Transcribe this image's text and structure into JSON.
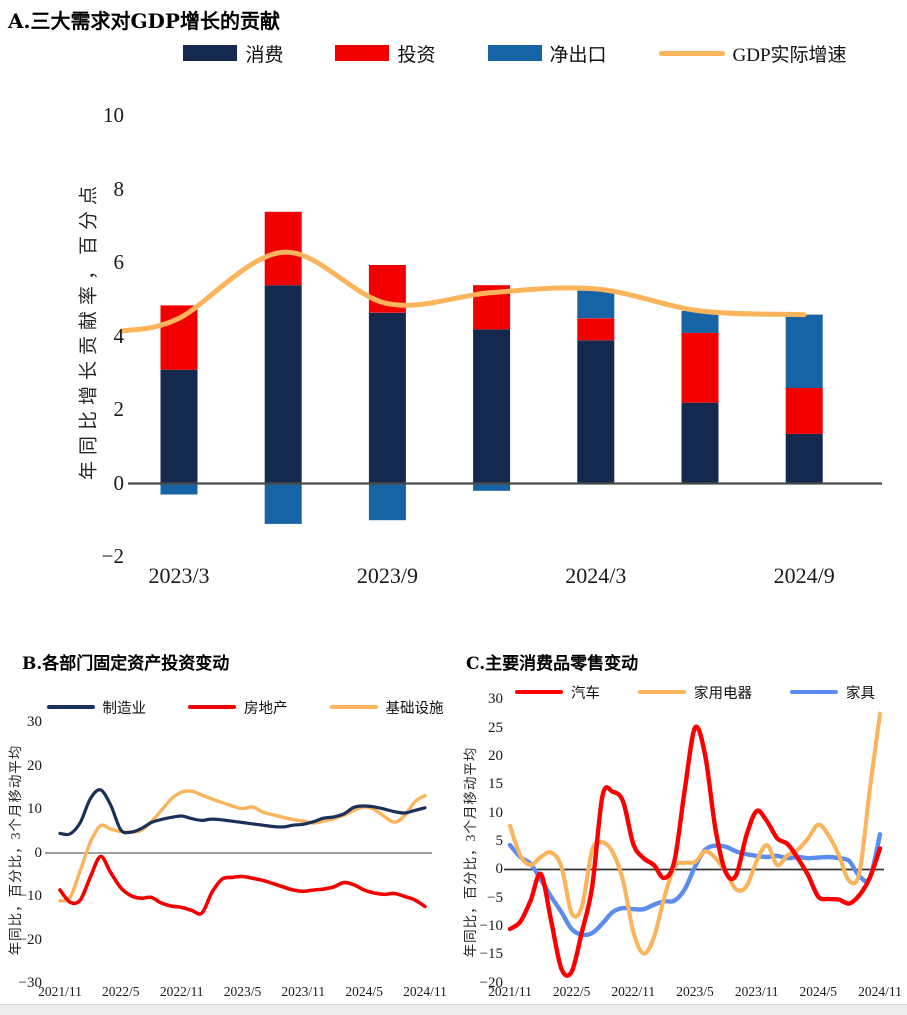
{
  "chart_data": [
    {
      "panel": "A",
      "type": "bar",
      "stacked": true,
      "title": "A.三大需求对GDP增长的贡献",
      "ylabel": "年同比增长贡献率，百分点",
      "categories": [
        "2023/3",
        "2023/6",
        "2023/9",
        "2023/12",
        "2024/3",
        "2024/6",
        "2024/9"
      ],
      "x_ticks_shown": [
        "2023/3",
        "2023/9",
        "2024/3",
        "2024/9"
      ],
      "yticks": [
        10,
        8,
        6,
        4,
        2,
        0,
        -2
      ],
      "ylim": [
        -2.7,
        10.9
      ],
      "grid": false,
      "legend_position": "top-center",
      "series": [
        {
          "id": "consumption",
          "name": "消费",
          "color": "#15294E",
          "values": [
            3.1,
            5.4,
            4.65,
            4.2,
            3.9,
            2.2,
            1.35
          ]
        },
        {
          "id": "investment",
          "name": "投资",
          "color": "#F20000",
          "values": [
            1.75,
            2.0,
            1.3,
            1.2,
            0.6,
            1.9,
            1.25
          ]
        },
        {
          "id": "net-exports",
          "name": "净出口",
          "color": "#1663A5",
          "values": [
            -0.3,
            -1.1,
            -1.0,
            -0.2,
            0.75,
            0.6,
            2.0
          ]
        }
      ],
      "line_overlay": {
        "id": "gdp-growth",
        "name": "GDP实际增速",
        "color": "#FBB45C",
        "values": [
          4.5,
          6.3,
          4.9,
          5.2,
          5.3,
          4.7,
          4.6
        ]
      }
    },
    {
      "panel": "B",
      "type": "line",
      "title": "B.各部门固定资产投资变动",
      "ylabel": "年同比，百分比，3个月移动平均",
      "x": [
        "2021/11",
        "2021/12",
        "2022/1",
        "2022/2",
        "2022/3",
        "2022/4",
        "2022/5",
        "2022/6",
        "2022/7",
        "2022/8",
        "2022/9",
        "2022/10",
        "2022/11",
        "2022/12",
        "2023/1",
        "2023/2",
        "2023/3",
        "2023/4",
        "2023/5",
        "2023/6",
        "2023/7",
        "2023/8",
        "2023/9",
        "2023/10",
        "2023/11",
        "2023/12",
        "2024/1",
        "2024/2",
        "2024/3",
        "2024/4",
        "2024/5",
        "2024/6",
        "2024/7",
        "2024/8",
        "2024/9",
        "2024/10",
        "2024/11"
      ],
      "x_ticks_shown": [
        "2021/11",
        "2022/5",
        "2022/11",
        "2023/5",
        "2023/11",
        "2024/5",
        "2024/11"
      ],
      "yticks": [
        30,
        20,
        10,
        0,
        -10,
        -20,
        -30
      ],
      "ylim": [
        -30,
        33
      ],
      "grid": false,
      "legend_position": "top-center",
      "series": [
        {
          "id": "manufacturing",
          "name": "制造业",
          "color": "#1B3059",
          "values": [
            4.5,
            4.4,
            7.0,
            12.5,
            14.5,
            11.0,
            5.3,
            4.8,
            5.6,
            7.0,
            7.7,
            8.2,
            8.5,
            7.9,
            7.5,
            7.8,
            7.6,
            7.3,
            7.0,
            6.7,
            6.4,
            6.1,
            6.0,
            6.4,
            6.6,
            7.2,
            8.0,
            8.3,
            9.0,
            10.5,
            10.8,
            10.6,
            10.1,
            9.5,
            9.2,
            9.8,
            10.4
          ]
        },
        {
          "id": "real-estate",
          "name": "房地产",
          "color": "#F20000",
          "values": [
            -8.5,
            -11.3,
            -10.8,
            -5.5,
            -0.8,
            -4.5,
            -8.0,
            -9.8,
            -10.4,
            -10.2,
            -11.5,
            -12.2,
            -12.5,
            -13.2,
            -13.8,
            -9.0,
            -6.0,
            -5.6,
            -5.4,
            -5.8,
            -6.3,
            -7.0,
            -7.8,
            -8.5,
            -8.8,
            -8.5,
            -8.3,
            -7.8,
            -6.8,
            -7.3,
            -8.5,
            -9.2,
            -9.5,
            -9.3,
            -10.0,
            -10.8,
            -12.3
          ]
        },
        {
          "id": "infrastructure",
          "name": "基础设施",
          "color": "#FBB45C",
          "values": [
            -11.0,
            -10.2,
            -4.0,
            2.5,
            6.3,
            5.5,
            4.9,
            4.8,
            5.2,
            7.2,
            9.8,
            12.5,
            14.0,
            14.2,
            13.3,
            12.4,
            11.6,
            10.8,
            10.2,
            10.6,
            9.4,
            8.8,
            8.2,
            7.7,
            7.3,
            6.9,
            7.3,
            7.9,
            8.7,
            9.8,
            10.6,
            10.0,
            8.4,
            7.1,
            8.6,
            11.8,
            13.2
          ]
        }
      ]
    },
    {
      "panel": "C",
      "type": "line",
      "title": "C.主要消费品零售变动",
      "ylabel": "年同比，百分比，3个月移动平均",
      "x": [
        "2021/11",
        "2021/12",
        "2022/1",
        "2022/2",
        "2022/3",
        "2022/4",
        "2022/5",
        "2022/6",
        "2022/7",
        "2022/8",
        "2022/9",
        "2022/10",
        "2022/11",
        "2022/12",
        "2023/1",
        "2023/2",
        "2023/3",
        "2023/4",
        "2023/5",
        "2023/6",
        "2023/7",
        "2023/8",
        "2023/9",
        "2023/10",
        "2023/11",
        "2023/12",
        "2024/1",
        "2024/2",
        "2024/3",
        "2024/4",
        "2024/5",
        "2024/6",
        "2024/7",
        "2024/8",
        "2024/9",
        "2024/10",
        "2024/11"
      ],
      "x_ticks_shown": [
        "2021/11",
        "2022/5",
        "2022/11",
        "2023/5",
        "2023/11",
        "2024/5",
        "2024/11"
      ],
      "yticks": [
        30,
        25,
        20,
        15,
        10,
        5,
        0,
        -5,
        -10,
        -15,
        -20
      ],
      "ylim": [
        -20,
        31
      ],
      "grid": false,
      "legend_position": "top-center",
      "series": [
        {
          "id": "autos",
          "name": "汽车",
          "color": "#FA0000",
          "values": [
            -10.5,
            -9.2,
            -5.5,
            -0.8,
            -9.0,
            -17.5,
            -18.0,
            -11.0,
            -3.0,
            13.0,
            13.7,
            12.0,
            4.5,
            2.0,
            0.8,
            -1.5,
            1.5,
            14.0,
            25.0,
            20.0,
            7.0,
            -0.5,
            -1.0,
            6.0,
            10.3,
            8.5,
            5.5,
            4.5,
            2.0,
            -1.0,
            -4.8,
            -5.2,
            -5.3,
            -6.0,
            -4.5,
            -1.5,
            3.7
          ]
        },
        {
          "id": "home-appliances",
          "name": "家用电器",
          "color": "#FBB45C",
          "values": [
            7.7,
            2.5,
            0.8,
            2.2,
            3.0,
            0.5,
            -7.7,
            -6.5,
            3.5,
            4.8,
            3.0,
            -2.0,
            -11.0,
            -14.8,
            -12.0,
            -5.0,
            0.5,
            1.2,
            1.3,
            3.2,
            2.0,
            -0.5,
            -3.5,
            -3.0,
            1.5,
            4.3,
            0.8,
            2.5,
            3.5,
            5.5,
            7.9,
            6.0,
            2.5,
            -2.0,
            -0.5,
            14.0,
            27.5
          ]
        },
        {
          "id": "furniture",
          "name": "家具",
          "color": "#5B8DF0",
          "values": [
            4.3,
            2.2,
            1.0,
            -1.8,
            -4.8,
            -7.5,
            -10.5,
            -11.5,
            -11.2,
            -9.5,
            -7.5,
            -6.8,
            -7.0,
            -7.0,
            -6.2,
            -5.6,
            -5.5,
            -3.5,
            0.5,
            3.5,
            4.2,
            4.0,
            3.2,
            2.7,
            2.4,
            2.2,
            2.4,
            2.0,
            2.2,
            2.0,
            2.1,
            2.2,
            2.0,
            1.5,
            -1.2,
            -1.5,
            6.2
          ]
        }
      ]
    }
  ]
}
